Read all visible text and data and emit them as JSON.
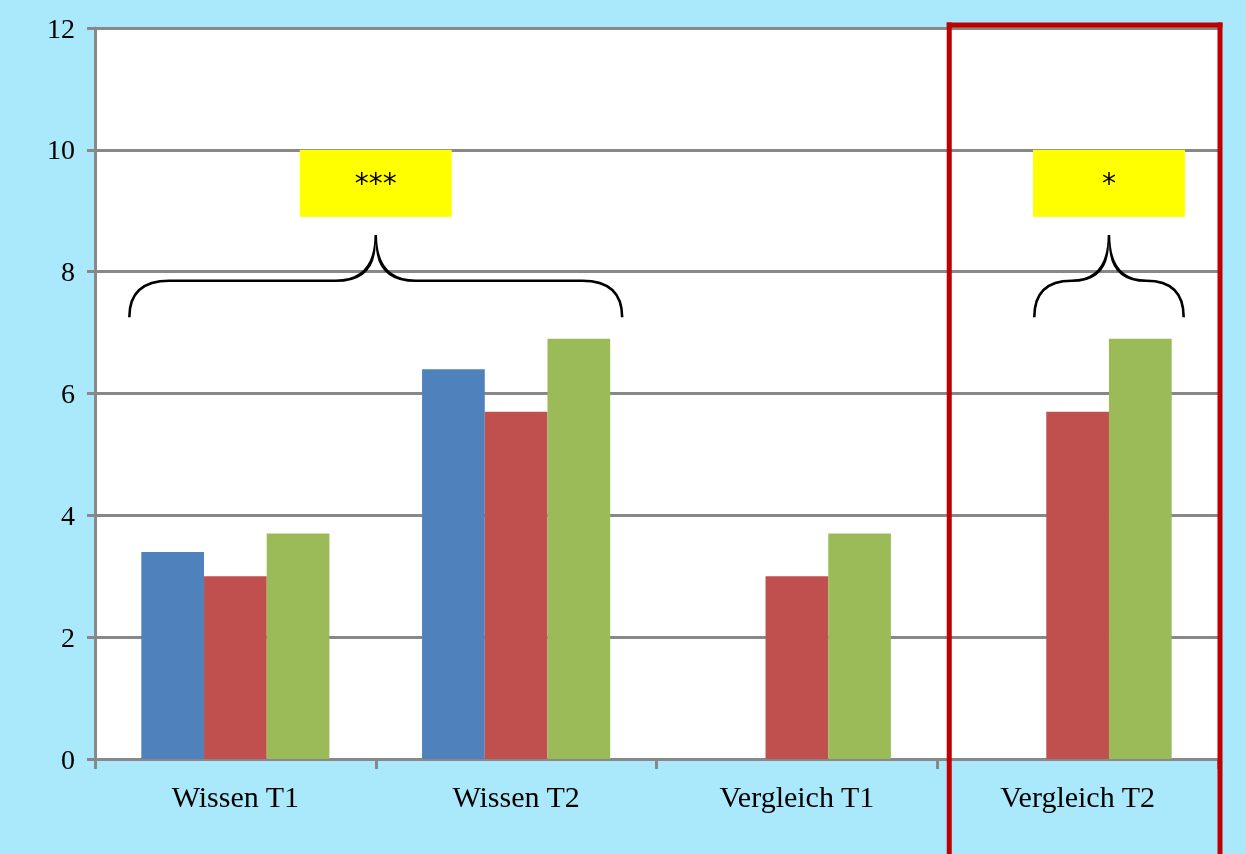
{
  "chart_data": {
    "type": "bar",
    "categories": [
      "Wissen T1",
      "Wissen T2",
      "Vergleich T1",
      "Vergleich T2"
    ],
    "series": [
      {
        "color": "#4f81bd",
        "values": [
          3.4,
          6.4,
          null,
          null
        ]
      },
      {
        "color": "#c0504d",
        "values": [
          3.0,
          5.7,
          3.0,
          5.7
        ]
      },
      {
        "color": "#9bbb59",
        "values": [
          3.7,
          6.9,
          3.7,
          6.9
        ]
      }
    ],
    "ylim": [
      0,
      12
    ],
    "yticks": [
      0,
      2,
      4,
      6,
      8,
      10,
      12
    ],
    "grid": "y",
    "bands": [
      {
        "axis": "x",
        "from": "Vergleich T2",
        "to": "Vergleich T2",
        "color": "#c00000"
      }
    ],
    "annotations": [
      "***",
      "*"
    ]
  }
}
